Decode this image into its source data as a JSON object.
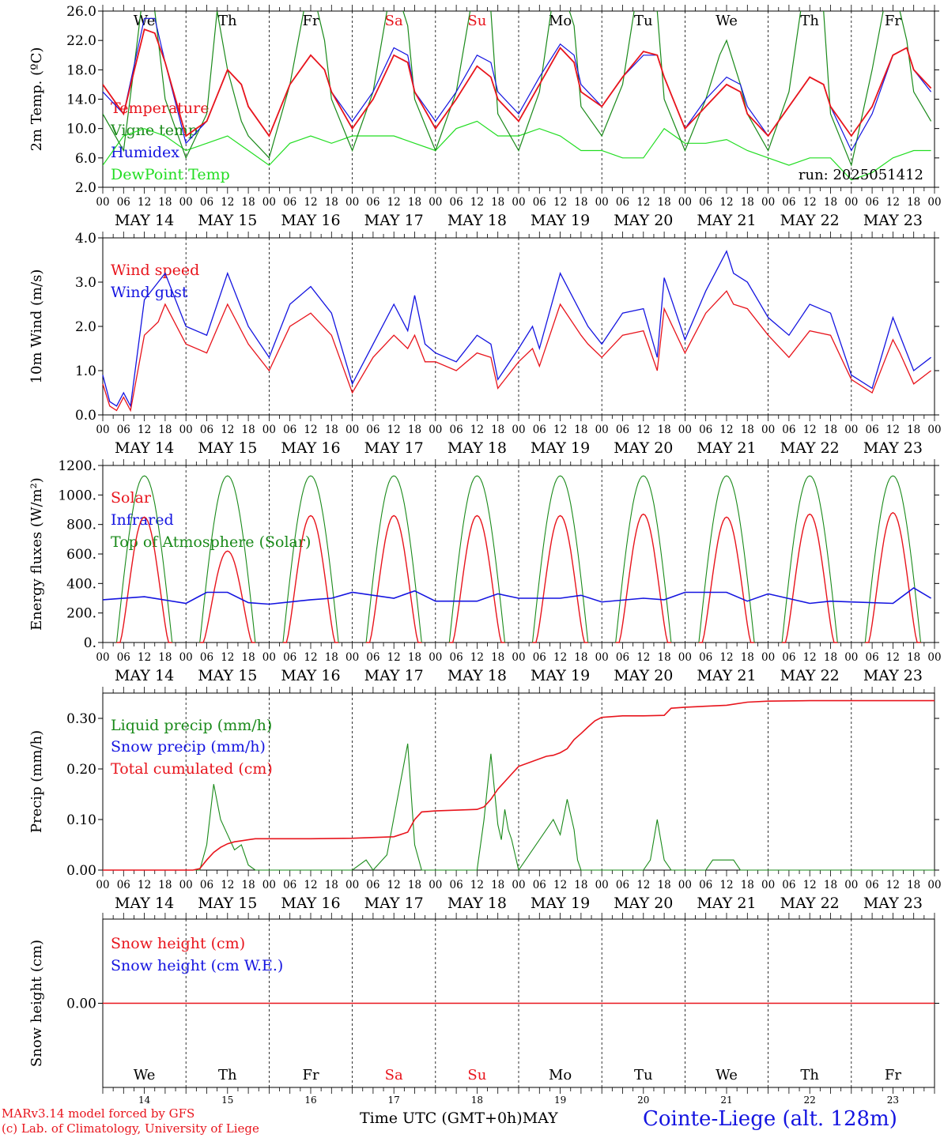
{
  "colors": {
    "red": "#e8141c",
    "green": "#1a8a1a",
    "blue": "#1414e0",
    "lime": "#22dd22",
    "grid": "#000000"
  },
  "days": {
    "names": [
      "We",
      "Th",
      "Fr",
      "Sa",
      "Su",
      "Mo",
      "Tu",
      "We",
      "Th",
      "Fr"
    ],
    "weekend_index": [
      3,
      4
    ],
    "dates": [
      "MAY 14",
      "MAY 15",
      "MAY 16",
      "MAY 17",
      "MAY 18",
      "MAY 19",
      "MAY 20",
      "MAY 21",
      "MAY 22",
      "MAY 23"
    ],
    "numbers": [
      "14",
      "15",
      "16",
      "17",
      "18",
      "19",
      "20",
      "21",
      "22",
      "23"
    ],
    "hour_ticks": [
      "00",
      "06",
      "12",
      "18"
    ],
    "final_tick": "00"
  },
  "chart_data": [
    {
      "type": "line",
      "ylabel": "2m Temp. (ºC)",
      "ylim": [
        2.0,
        26.0
      ],
      "yticks": [
        "2.0",
        "6.0",
        "10.0",
        "14.0",
        "18.0",
        "22.0",
        "26.0"
      ],
      "annotation": "run: 2025051412",
      "x_unit": "hours since MAY 14 00 UTC",
      "series": [
        {
          "name": "Temperature",
          "color": "red",
          "x": [
            0,
            6,
            12,
            15,
            18,
            24,
            30,
            36,
            40,
            42,
            48,
            54,
            60,
            64,
            66,
            72,
            78,
            84,
            88,
            90,
            96,
            102,
            108,
            112,
            114,
            120,
            126,
            132,
            136,
            138,
            144,
            150,
            156,
            160,
            162,
            168,
            174,
            180,
            184,
            186,
            192,
            198,
            204,
            208,
            210,
            216,
            222,
            228,
            232,
            234,
            239
          ],
          "y": [
            16,
            12,
            23.5,
            23,
            19,
            9,
            11,
            18,
            16,
            13,
            9,
            16,
            20,
            18,
            15,
            10,
            14,
            20,
            19,
            15,
            10,
            14,
            18.5,
            17,
            14,
            11,
            16,
            21,
            19,
            15,
            13,
            17,
            20.5,
            20,
            17,
            10,
            13,
            16,
            15,
            12,
            9,
            13,
            17,
            16,
            13,
            9,
            13,
            20,
            21,
            18,
            15.5
          ]
        },
        {
          "name": "Vigne temp",
          "color": "green",
          "x": [
            0,
            6,
            10,
            12,
            15,
            18,
            24,
            30,
            33,
            36,
            40,
            42,
            48,
            54,
            58,
            60,
            64,
            66,
            72,
            78,
            82,
            84,
            88,
            90,
            96,
            102,
            106,
            108,
            112,
            114,
            120,
            126,
            130,
            132,
            136,
            138,
            144,
            150,
            154,
            156,
            160,
            162,
            168,
            174,
            178,
            180,
            184,
            186,
            192,
            198,
            202,
            204,
            208,
            210,
            216,
            222,
            226,
            228,
            232,
            234,
            239
          ],
          "y": [
            12,
            7,
            22,
            30,
            26,
            14,
            6,
            12,
            26,
            18,
            11,
            9,
            6,
            16,
            26,
            30,
            22,
            14,
            7,
            15,
            26,
            30,
            24,
            14,
            7,
            15,
            26,
            30,
            26,
            12,
            7,
            15,
            28,
            30,
            24,
            13,
            9,
            16,
            28,
            30,
            26,
            14,
            7,
            14,
            20,
            22,
            16,
            12,
            7,
            15,
            28,
            30,
            26,
            12,
            5,
            18,
            28,
            30,
            22,
            15,
            11
          ]
        },
        {
          "name": "Humidex",
          "color": "blue",
          "x": [
            0,
            6,
            12,
            15,
            18,
            24,
            30,
            36,
            40,
            42,
            48,
            54,
            60,
            64,
            66,
            72,
            78,
            84,
            88,
            90,
            96,
            102,
            108,
            112,
            114,
            120,
            126,
            132,
            136,
            138,
            144,
            150,
            156,
            160,
            162,
            168,
            174,
            180,
            184,
            186,
            192,
            198,
            204,
            208,
            210,
            216,
            222,
            228,
            232,
            234,
            239
          ],
          "y": [
            15,
            12,
            25,
            25,
            19,
            8,
            11,
            18,
            16,
            13,
            9,
            16,
            20,
            18,
            15,
            11,
            15,
            21,
            20,
            15,
            11,
            15,
            20,
            19,
            15,
            12,
            17,
            21.5,
            20,
            16,
            13,
            17,
            20,
            20,
            17,
            10,
            14,
            17,
            16,
            13,
            9,
            13,
            17,
            16,
            13,
            7,
            12,
            20,
            21,
            18,
            15
          ]
        },
        {
          "name": "DewPoint Temp",
          "color": "lime",
          "x": [
            0,
            6,
            12,
            18,
            24,
            30,
            36,
            42,
            48,
            54,
            60,
            66,
            72,
            78,
            84,
            90,
            96,
            102,
            108,
            114,
            120,
            126,
            132,
            138,
            144,
            150,
            156,
            162,
            168,
            174,
            180,
            186,
            192,
            198,
            204,
            210,
            216,
            222,
            228,
            234,
            239
          ],
          "y": [
            5,
            9,
            10,
            9,
            7,
            8,
            9,
            7,
            5,
            8,
            9,
            8,
            9,
            9,
            9,
            8,
            7,
            10,
            11,
            9,
            9,
            10,
            9,
            7,
            7,
            6,
            6,
            10,
            8,
            8,
            8.5,
            7,
            6,
            5,
            6,
            6,
            3,
            4,
            6,
            7,
            7
          ]
        }
      ]
    },
    {
      "type": "line",
      "ylabel": "10m Wind (m/s)",
      "ylim": [
        0.0,
        4.0
      ],
      "yticks": [
        "0.0",
        "1.0",
        "2.0",
        "3.0",
        "4.0"
      ],
      "series": [
        {
          "name": "Wind speed",
          "color": "red",
          "x": [
            0,
            2,
            4,
            6,
            8,
            12,
            16,
            18,
            22,
            24,
            30,
            36,
            42,
            48,
            54,
            60,
            66,
            72,
            78,
            84,
            88,
            90,
            93,
            96,
            102,
            108,
            112,
            114,
            120,
            124,
            126,
            132,
            138,
            140,
            144,
            150,
            156,
            160,
            162,
            168,
            174,
            180,
            182,
            186,
            192,
            198,
            204,
            210,
            216,
            222,
            228,
            230,
            234,
            239
          ],
          "y": [
            0.7,
            0.2,
            0.1,
            0.4,
            0.1,
            1.8,
            2.1,
            2.5,
            1.9,
            1.6,
            1.4,
            2.5,
            1.6,
            1.0,
            2.0,
            2.3,
            1.8,
            0.5,
            1.3,
            1.8,
            1.5,
            1.8,
            1.2,
            1.2,
            1.0,
            1.4,
            1.3,
            0.6,
            1.2,
            1.5,
            1.1,
            2.5,
            1.8,
            1.6,
            1.3,
            1.8,
            1.9,
            1.0,
            2.4,
            1.4,
            2.3,
            2.8,
            2.5,
            2.4,
            1.8,
            1.3,
            1.9,
            1.8,
            0.8,
            0.5,
            1.7,
            1.4,
            0.7,
            1.0
          ]
        },
        {
          "name": "Wind gust",
          "color": "blue",
          "x": [
            0,
            2,
            4,
            6,
            8,
            12,
            16,
            18,
            22,
            24,
            30,
            36,
            42,
            48,
            54,
            60,
            66,
            72,
            78,
            84,
            88,
            90,
            93,
            96,
            102,
            108,
            112,
            114,
            120,
            124,
            126,
            132,
            138,
            140,
            144,
            150,
            156,
            160,
            162,
            168,
            174,
            180,
            182,
            186,
            192,
            198,
            204,
            210,
            216,
            222,
            228,
            230,
            234,
            239
          ],
          "y": [
            0.9,
            0.3,
            0.2,
            0.5,
            0.2,
            2.6,
            3.0,
            3.2,
            2.4,
            2.0,
            1.8,
            3.2,
            2.0,
            1.3,
            2.5,
            2.9,
            2.3,
            0.7,
            1.6,
            2.5,
            1.9,
            2.7,
            1.6,
            1.4,
            1.2,
            1.8,
            1.6,
            0.8,
            1.5,
            2.0,
            1.5,
            3.2,
            2.3,
            2.0,
            1.6,
            2.3,
            2.4,
            1.3,
            3.1,
            1.7,
            2.8,
            3.7,
            3.2,
            3.0,
            2.2,
            1.8,
            2.5,
            2.3,
            0.9,
            0.6,
            2.2,
            1.8,
            1.0,
            1.3
          ]
        }
      ]
    },
    {
      "type": "line",
      "ylabel": "Energy fluxes (W/m²)",
      "ylim": [
        0,
        1200
      ],
      "yticks": [
        "0.",
        "200.",
        "400.",
        "600.",
        "800.",
        "1000.",
        "1200."
      ],
      "series": [
        {
          "name": "Solar",
          "color": "red",
          "peaks": [
            850,
            620,
            860,
            860,
            860,
            860,
            870,
            850,
            870,
            880
          ]
        },
        {
          "name": "Infrared",
          "color": "blue",
          "x": [
            0,
            12,
            24,
            30,
            36,
            42,
            48,
            60,
            66,
            72,
            84,
            90,
            96,
            108,
            114,
            120,
            132,
            138,
            144,
            156,
            162,
            168,
            180,
            186,
            192,
            204,
            210,
            216,
            228,
            234,
            239
          ],
          "y": [
            290,
            310,
            265,
            340,
            340,
            270,
            260,
            290,
            300,
            340,
            300,
            350,
            280,
            280,
            330,
            300,
            300,
            320,
            275,
            300,
            290,
            340,
            340,
            280,
            330,
            265,
            280,
            275,
            265,
            370,
            300
          ]
        },
        {
          "name": "Top of Atmosphere (Solar)",
          "color": "green",
          "peak": 1130
        }
      ]
    },
    {
      "type": "line",
      "ylabel": "Precip (mm/h)",
      "ylim": [
        0.0,
        0.35
      ],
      "yticks": [
        "0.00",
        "0.10",
        "0.20",
        "0.30"
      ],
      "series": [
        {
          "name": "Liquid precip (mm/h)",
          "color": "green",
          "x": [
            0,
            28,
            30,
            32,
            34,
            36,
            38,
            40,
            42,
            44,
            46,
            72,
            76,
            78,
            82,
            88,
            90,
            92,
            94,
            96,
            108,
            110,
            112,
            114,
            115,
            116,
            117,
            118,
            120,
            130,
            132,
            134,
            136,
            137,
            138,
            140,
            142,
            144,
            156,
            158,
            160,
            162,
            164,
            174,
            176,
            182,
            184,
            186,
            188,
            190,
            192,
            240
          ],
          "y": [
            0,
            0,
            0.05,
            0.17,
            0.1,
            0.07,
            0.04,
            0.05,
            0.01,
            0,
            0,
            0,
            0.02,
            0,
            0.03,
            0.25,
            0.05,
            0,
            0,
            0,
            0,
            0.1,
            0.23,
            0.09,
            0.06,
            0.12,
            0.08,
            0.06,
            0,
            0.1,
            0.07,
            0.14,
            0.08,
            0.02,
            0,
            0,
            0,
            0,
            0,
            0.02,
            0.1,
            0.02,
            0,
            0,
            0.02,
            0.02,
            0,
            0,
            0,
            0,
            0,
            0
          ]
        },
        {
          "name": "Snow precip (mm/h)",
          "color": "blue"
        },
        {
          "name": "Total cumulated (cm)",
          "color": "red",
          "x": [
            0,
            26,
            28,
            30,
            32,
            34,
            36,
            38,
            40,
            42,
            44,
            48,
            60,
            72,
            84,
            88,
            90,
            92,
            96,
            108,
            110,
            112,
            114,
            116,
            118,
            120,
            128,
            130,
            132,
            134,
            136,
            138,
            140,
            142,
            144,
            150,
            156,
            162,
            164,
            168,
            180,
            186,
            192,
            204,
            240
          ],
          "y": [
            0,
            0,
            0.003,
            0.02,
            0.035,
            0.045,
            0.052,
            0.056,
            0.058,
            0.06,
            0.062,
            0.062,
            0.062,
            0.063,
            0.066,
            0.075,
            0.1,
            0.115,
            0.117,
            0.12,
            0.125,
            0.14,
            0.16,
            0.175,
            0.19,
            0.205,
            0.225,
            0.227,
            0.232,
            0.24,
            0.258,
            0.27,
            0.283,
            0.295,
            0.302,
            0.305,
            0.305,
            0.306,
            0.32,
            0.322,
            0.326,
            0.332,
            0.334,
            0.335,
            0.335
          ]
        }
      ]
    },
    {
      "type": "line",
      "ylabel": "Snow height (cm)",
      "ylim": [
        -0.5,
        0.5
      ],
      "yticks": [
        "0.00"
      ],
      "series": [
        {
          "name": "Snow height (cm)",
          "color": "red",
          "x": [
            0,
            240
          ],
          "y": [
            0,
            0
          ]
        },
        {
          "name": "Snow height (cm W.E.)",
          "color": "blue"
        }
      ]
    }
  ],
  "footer": {
    "xlabel": "Time UTC (GMT+0h)",
    "month": "MAY",
    "credit1": "MARv3.14 model forced by GFS",
    "credit2": "(c) Lab. of Climatology, University of Liege",
    "station": "Cointe-Liege (alt. 128m)"
  }
}
